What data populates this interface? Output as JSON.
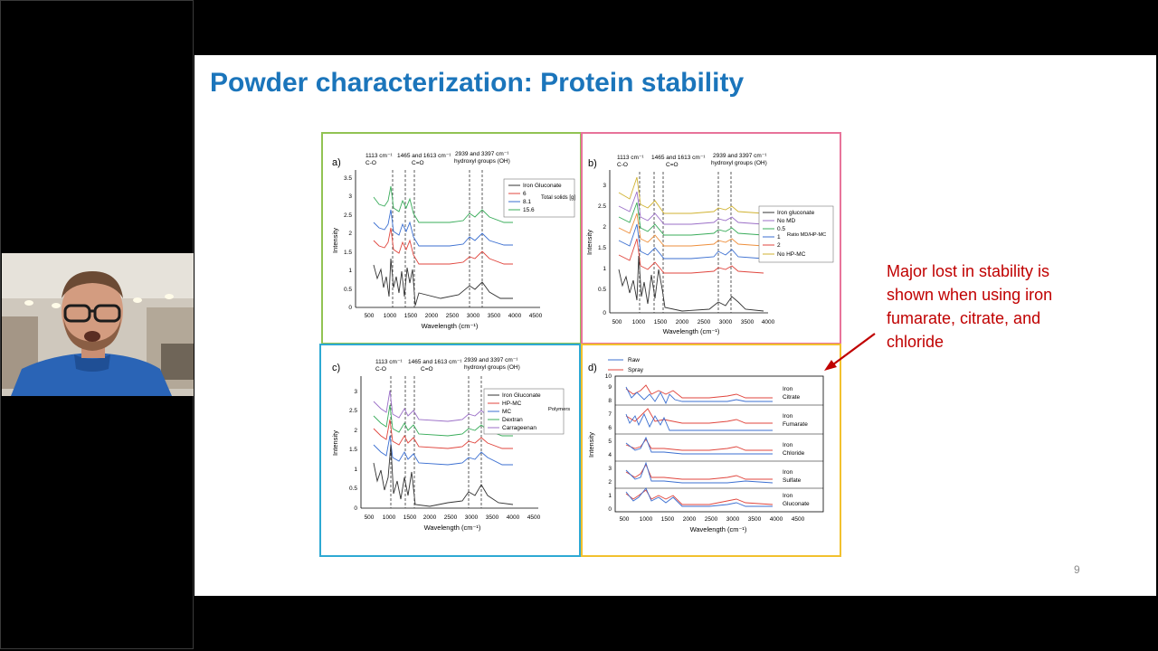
{
  "slide": {
    "title": "Powder characterization: Protein stability",
    "callout": "Major lost in stability is shown when using iron fumarate, citrate, and chloride",
    "page_number": "9"
  },
  "colors": {
    "title": "#1b75bb",
    "callout": "#c00000",
    "panel_a": "#92c353",
    "panel_b": "#e8739a",
    "panel_c": "#2ea9d3",
    "panel_d": "#f2c12e"
  },
  "panel_a": {
    "label": "a)",
    "ann_co_num": "1113 cm⁻¹",
    "ann_co": "C-O",
    "ann_cdo_num": "1465 and 1613 cm⁻¹",
    "ann_cdo": "C=O",
    "ann_oh_num": "2939 and 3397 cm⁻¹",
    "ann_oh": "hydroxyl groups (OH)",
    "legend": [
      "Iron Gluconate",
      "6",
      "8.1",
      "15.6"
    ],
    "legend_group": "Total solids [g]",
    "ylabel": "Intensity",
    "xlabel": "Wavelength (cm⁻¹)",
    "yticks": [
      "0",
      "0.5",
      "1",
      "1.5",
      "2",
      "2.5",
      "3",
      "3.5"
    ],
    "xticks": [
      "500",
      "1000",
      "1500",
      "2000",
      "2500",
      "3000",
      "3500",
      "4000",
      "4500"
    ]
  },
  "panel_b": {
    "label": "b)",
    "ann_co_num": "1113 cm⁻¹",
    "ann_co": "C-O",
    "ann_cdo_num": "1465 and 1613 cm⁻¹",
    "ann_cdo": "C=O",
    "ann_oh_num": "2939 and 3397 cm⁻¹",
    "ann_oh": "hydroxyl groups (OH)",
    "legend": [
      "Iron gluconate",
      "No MD",
      "0.5",
      "1",
      "2",
      "No HP-MC"
    ],
    "legend_group": "Ratio MD/HP-MC",
    "ylabel": "Intensity",
    "xlabel": "Wavelength (cm⁻¹)",
    "yticks": [
      "0",
      "0.5",
      "1",
      "1.5",
      "2",
      "2.5",
      "3"
    ],
    "xticks": [
      "500",
      "1000",
      "1500",
      "2000",
      "2500",
      "3000",
      "3500",
      "4000"
    ]
  },
  "panel_c": {
    "label": "c)",
    "ann_co_num": "1113 cm⁻¹",
    "ann_co": "C-O",
    "ann_cdo_num": "1465 and 1613 cm⁻¹",
    "ann_cdo": "C=O",
    "ann_oh_num": "2939 and 3397 cm⁻¹",
    "ann_oh": "hydroxyl groups (OH)",
    "legend": [
      "Iron Gluconate",
      "HP-MC",
      "MC",
      "Dextran",
      "Carrageenan"
    ],
    "legend_group": "Polymers",
    "ylabel": "Intensity",
    "xlabel": "Wavelength (cm⁻¹)",
    "yticks": [
      "0",
      "0.5",
      "1",
      "1.5",
      "2",
      "2.5",
      "3"
    ],
    "xticks": [
      "500",
      "1000",
      "1500",
      "2000",
      "2500",
      "3000",
      "3500",
      "4000",
      "4500"
    ]
  },
  "panel_d": {
    "label": "d)",
    "legend": [
      "Raw",
      "Spray"
    ],
    "ylabel": "Intensity",
    "xlabel": "Wavelength (cm⁻¹)",
    "yticks": [
      "0",
      "1",
      "2",
      "3",
      "4",
      "5",
      "6",
      "7",
      "8",
      "9",
      "10"
    ],
    "xticks": [
      "500",
      "1000",
      "1500",
      "2000",
      "2500",
      "3000",
      "3500",
      "4000",
      "4500"
    ],
    "rows": [
      {
        "line1": "Iron",
        "line2": "Citrate"
      },
      {
        "line1": "Iron",
        "line2": "Fumarate"
      },
      {
        "line1": "Iron",
        "line2": "Chloride"
      },
      {
        "line1": "Iron",
        "line2": "Sulfate"
      },
      {
        "line1": "Iron",
        "line2": "Gluconate"
      }
    ]
  }
}
